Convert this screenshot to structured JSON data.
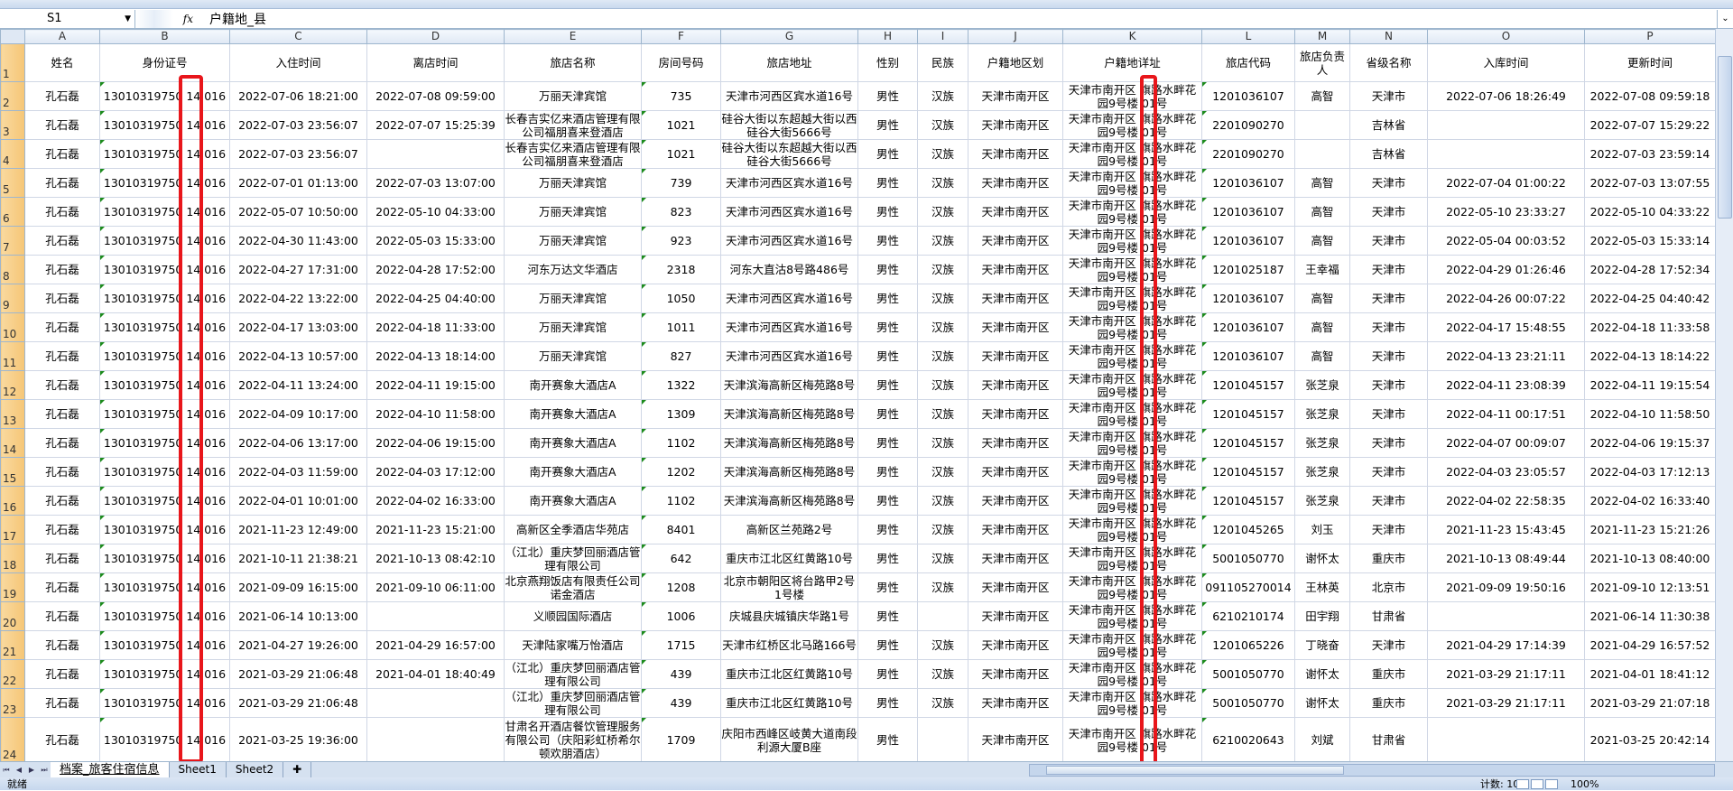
{
  "formula_bar": {
    "name_box": "S1",
    "formula": "户籍地_县"
  },
  "columns": [
    "A",
    "B",
    "C",
    "D",
    "E",
    "F",
    "G",
    "H",
    "I",
    "J",
    "K",
    "L",
    "M",
    "N",
    "O",
    "P"
  ],
  "headers": [
    "姓名",
    "身份证号",
    "入住时间",
    "离店时间",
    "旅店名称",
    "房间号码",
    "旅店地址",
    "性别",
    "民族",
    "户籍地区划",
    "户籍地详址",
    "旅店代码",
    "旅店负责人",
    "省级名称",
    "入库时间",
    "更新时间"
  ],
  "rows": [
    [
      "孔石磊",
      "13010319750 14 016",
      "2022-07-06 18:21:00",
      "2022-07-08 09:59:00",
      "万丽天津宾馆",
      "735",
      "天津市河西区宾水道16号",
      "男性",
      "汉族",
      "天津市南开区",
      "天津市南开区 旗路水畔花园9号楼 01号",
      "1201036107",
      "高智",
      "天津市",
      "2022-07-06 18:26:49",
      "2022-07-08 09:59:18"
    ],
    [
      "孔石磊",
      "13010319750 14 016",
      "2022-07-03 23:56:07",
      "2022-07-07 15:25:39",
      "长春吉实亿来酒店管理有限公司福朋喜来登酒店",
      "1021",
      "硅谷大街以东超越大街以西硅谷大街5666号",
      "男性",
      "汉族",
      "天津市南开区",
      "天津市南开区 旗路水畔花园9号楼 01号",
      "2201090270",
      "",
      "吉林省",
      "",
      "2022-07-07 15:29:22"
    ],
    [
      "孔石磊",
      "13010319750 14 016",
      "2022-07-03 23:56:07",
      "",
      "长春吉实亿来酒店管理有限公司福朋喜来登酒店",
      "1021",
      "硅谷大街以东超越大街以西硅谷大街5666号",
      "男性",
      "汉族",
      "天津市南开区",
      "天津市南开区 旗路水畔花园9号楼 01号",
      "2201090270",
      "",
      "吉林省",
      "",
      "2022-07-03 23:59:14"
    ],
    [
      "孔石磊",
      "13010319750 14 016",
      "2022-07-01 01:13:00",
      "2022-07-03 13:07:00",
      "万丽天津宾馆",
      "739",
      "天津市河西区宾水道16号",
      "男性",
      "汉族",
      "天津市南开区",
      "天津市南开区 旗路水畔花园9号楼 01号",
      "1201036107",
      "高智",
      "天津市",
      "2022-07-04 01:00:22",
      "2022-07-03 13:07:55"
    ],
    [
      "孔石磊",
      "13010319750 14 016",
      "2022-05-07 10:50:00",
      "2022-05-10 04:33:00",
      "万丽天津宾馆",
      "823",
      "天津市河西区宾水道16号",
      "男性",
      "汉族",
      "天津市南开区",
      "天津市南开区 旗路水畔花园9号楼 01号",
      "1201036107",
      "高智",
      "天津市",
      "2022-05-10 23:33:27",
      "2022-05-10 04:33:22"
    ],
    [
      "孔石磊",
      "13010319750 14 016",
      "2022-04-30 11:43:00",
      "2022-05-03 15:33:00",
      "万丽天津宾馆",
      "923",
      "天津市河西区宾水道16号",
      "男性",
      "汉族",
      "天津市南开区",
      "天津市南开区 旗路水畔花园9号楼 01号",
      "1201036107",
      "高智",
      "天津市",
      "2022-05-04 00:03:52",
      "2022-05-03 15:33:14"
    ],
    [
      "孔石磊",
      "13010319750 14 016",
      "2022-04-27 17:31:00",
      "2022-04-28 17:52:00",
      "河东万达文华酒店",
      "2318",
      "河东大直沽8号路486号",
      "男性",
      "汉族",
      "天津市南开区",
      "天津市南开区 旗路水畔花园9号楼 01号",
      "1201025187",
      "王幸福",
      "天津市",
      "2022-04-29 01:26:46",
      "2022-04-28 17:52:34"
    ],
    [
      "孔石磊",
      "13010319750 14 016",
      "2022-04-22 13:22:00",
      "2022-04-25 04:40:00",
      "万丽天津宾馆",
      "1050",
      "天津市河西区宾水道16号",
      "男性",
      "汉族",
      "天津市南开区",
      "天津市南开区 旗路水畔花园9号楼 01号",
      "1201036107",
      "高智",
      "天津市",
      "2022-04-26 00:07:22",
      "2022-04-25 04:40:42"
    ],
    [
      "孔石磊",
      "13010319750 14 016",
      "2022-04-17 13:03:00",
      "2022-04-18 11:33:00",
      "万丽天津宾馆",
      "1011",
      "天津市河西区宾水道16号",
      "男性",
      "汉族",
      "天津市南开区",
      "天津市南开区 旗路水畔花园9号楼 01号",
      "1201036107",
      "高智",
      "天津市",
      "2022-04-17 15:48:55",
      "2022-04-18 11:33:58"
    ],
    [
      "孔石磊",
      "13010319750 14 016",
      "2022-04-13 10:57:00",
      "2022-04-13 18:14:00",
      "万丽天津宾馆",
      "827",
      "天津市河西区宾水道16号",
      "男性",
      "汉族",
      "天津市南开区",
      "天津市南开区 旗路水畔花园9号楼 01号",
      "1201036107",
      "高智",
      "天津市",
      "2022-04-13 23:21:11",
      "2022-04-13 18:14:22"
    ],
    [
      "孔石磊",
      "13010319750 14 016",
      "2022-04-11 13:24:00",
      "2022-04-11 19:15:00",
      "南开赛象大酒店A",
      "1322",
      "天津滨海高新区梅苑路8号",
      "男性",
      "汉族",
      "天津市南开区",
      "天津市南开区 旗路水畔花园9号楼 01号",
      "1201045157",
      "张芝泉",
      "天津市",
      "2022-04-11 23:08:39",
      "2022-04-11 19:15:54"
    ],
    [
      "孔石磊",
      "13010319750 14 016",
      "2022-04-09 10:17:00",
      "2022-04-10 11:58:00",
      "南开赛象大酒店A",
      "1309",
      "天津滨海高新区梅苑路8号",
      "男性",
      "汉族",
      "天津市南开区",
      "天津市南开区 旗路水畔花园9号楼 01号",
      "1201045157",
      "张芝泉",
      "天津市",
      "2022-04-11 00:17:51",
      "2022-04-10 11:58:50"
    ],
    [
      "孔石磊",
      "13010319750 14 016",
      "2022-04-06 13:17:00",
      "2022-04-06 19:15:00",
      "南开赛象大酒店A",
      "1102",
      "天津滨海高新区梅苑路8号",
      "男性",
      "汉族",
      "天津市南开区",
      "天津市南开区 旗路水畔花园9号楼 01号",
      "1201045157",
      "张芝泉",
      "天津市",
      "2022-04-07 00:09:07",
      "2022-04-06 19:15:37"
    ],
    [
      "孔石磊",
      "13010319750 14 016",
      "2022-04-03 11:59:00",
      "2022-04-03 17:12:00",
      "南开赛象大酒店A",
      "1202",
      "天津滨海高新区梅苑路8号",
      "男性",
      "汉族",
      "天津市南开区",
      "天津市南开区 旗路水畔花园9号楼 01号",
      "1201045157",
      "张芝泉",
      "天津市",
      "2022-04-03 23:05:57",
      "2022-04-03 17:12:13"
    ],
    [
      "孔石磊",
      "13010319750 14 016",
      "2022-04-01 10:01:00",
      "2022-04-02 16:33:00",
      "南开赛象大酒店A",
      "1102",
      "天津滨海高新区梅苑路8号",
      "男性",
      "汉族",
      "天津市南开区",
      "天津市南开区 旗路水畔花园9号楼 01号",
      "1201045157",
      "张芝泉",
      "天津市",
      "2022-04-02 22:58:35",
      "2022-04-02 16:33:40"
    ],
    [
      "孔石磊",
      "13010319750 14 016",
      "2021-11-23 12:49:00",
      "2021-11-23 15:21:00",
      "高新区全季酒店华苑店",
      "8401",
      "高新区兰苑路2号",
      "男性",
      "汉族",
      "天津市南开区",
      "天津市南开区 旗路水畔花园9号楼 01号",
      "1201045265",
      "刘玉",
      "天津市",
      "2021-11-23 15:43:45",
      "2021-11-23 15:21:26"
    ],
    [
      "孔石磊",
      "13010319750 14 016",
      "2021-10-11 21:38:21",
      "2021-10-13 08:42:10",
      "（江北）重庆梦回丽酒店管理有限公司",
      "642",
      "重庆市江北区红黄路10号",
      "男性",
      "汉族",
      "天津市南开区",
      "天津市南开区 旗路水畔花园9号楼 01号",
      "5001050770",
      "谢怀太",
      "重庆市",
      "2021-10-13 08:49:44",
      "2021-10-13 08:40:00"
    ],
    [
      "孔石磊",
      "13010319750 14 016",
      "2021-09-09 16:15:00",
      "2021-09-10 06:11:00",
      "北京燕翔饭店有限责任公司诺金酒店",
      "1208",
      "北京市朝阳区将台路甲2号1号楼",
      "男性",
      "汉族",
      "天津市南开区",
      "天津市南开区 旗路水畔花园9号楼 01号",
      "091105270014",
      "王林英",
      "北京市",
      "2021-09-09 19:50:16",
      "2021-09-10 12:13:51"
    ],
    [
      "孔石磊",
      "13010319750 14 016",
      "2021-06-14 10:13:00",
      "",
      "义顺园国际酒店",
      "1006",
      "庆城县庆城镇庆华路1号",
      "男性",
      "",
      "天津市南开区",
      "天津市南开区 旗路水畔花园9号楼 01号",
      "6210210174",
      "田宇翔",
      "甘肃省",
      "",
      "2021-06-14 11:30:38"
    ],
    [
      "孔石磊",
      "13010319750 14 016",
      "2021-04-27 19:26:00",
      "2021-04-29 16:57:00",
      "天津陆家嘴万怡酒店",
      "1715",
      "天津市红桥区北马路166号",
      "男性",
      "汉族",
      "天津市南开区",
      "天津市南开区 旗路水畔花园9号楼 01号",
      "1201065226",
      "丁晓奋",
      "天津市",
      "2021-04-29 17:14:39",
      "2021-04-29 16:57:52"
    ],
    [
      "孔石磊",
      "13010319750 14 016",
      "2021-03-29 21:06:48",
      "2021-04-01 18:40:49",
      "（江北）重庆梦回丽酒店管理有限公司",
      "439",
      "重庆市江北区红黄路10号",
      "男性",
      "汉族",
      "天津市南开区",
      "天津市南开区 旗路水畔花园9号楼 01号",
      "5001050770",
      "谢怀太",
      "重庆市",
      "2021-03-29 21:17:11",
      "2021-04-01 18:41:12"
    ],
    [
      "孔石磊",
      "13010319750 14 016",
      "2021-03-29 21:06:48",
      "",
      "（江北）重庆梦回丽酒店管理有限公司",
      "439",
      "重庆市江北区红黄路10号",
      "男性",
      "汉族",
      "天津市南开区",
      "天津市南开区 旗路水畔花园9号楼 01号",
      "5001050770",
      "谢怀太",
      "重庆市",
      "2021-03-29 21:17:11",
      "2021-03-29 21:07:18"
    ],
    [
      "孔石磊",
      "13010319750 14 016",
      "2021-03-25 19:36:00",
      "",
      "甘肃名开酒店餐饮管理服务有限公司（庆阳彩虹桥希尔顿欢朋酒店）",
      "1709",
      "庆阳市西峰区岐黄大道南段利源大厦B座",
      "男性",
      "",
      "天津市南开区",
      "天津市南开区 旗路水畔花园9号楼 01号",
      "6210020643",
      "刘斌",
      "甘肃省",
      "",
      "2021-03-25 20:42:14"
    ],
    [
      "",
      "",
      "",
      "",
      "",
      "",
      "",
      "",
      "",
      "",
      "天津市南开区 旗路水畔花园9号楼 01号",
      "",
      "",
      "",
      "",
      ""
    ]
  ],
  "sheet_tabs": [
    "档案_旅客住宿信息",
    "Sheet1",
    "Sheet2"
  ],
  "status": {
    "ready": "就绪",
    "count": "计数: 102",
    "zoom": "100%"
  },
  "colors": {
    "highlight": "#e8161b",
    "row_header": "#f6c676"
  }
}
